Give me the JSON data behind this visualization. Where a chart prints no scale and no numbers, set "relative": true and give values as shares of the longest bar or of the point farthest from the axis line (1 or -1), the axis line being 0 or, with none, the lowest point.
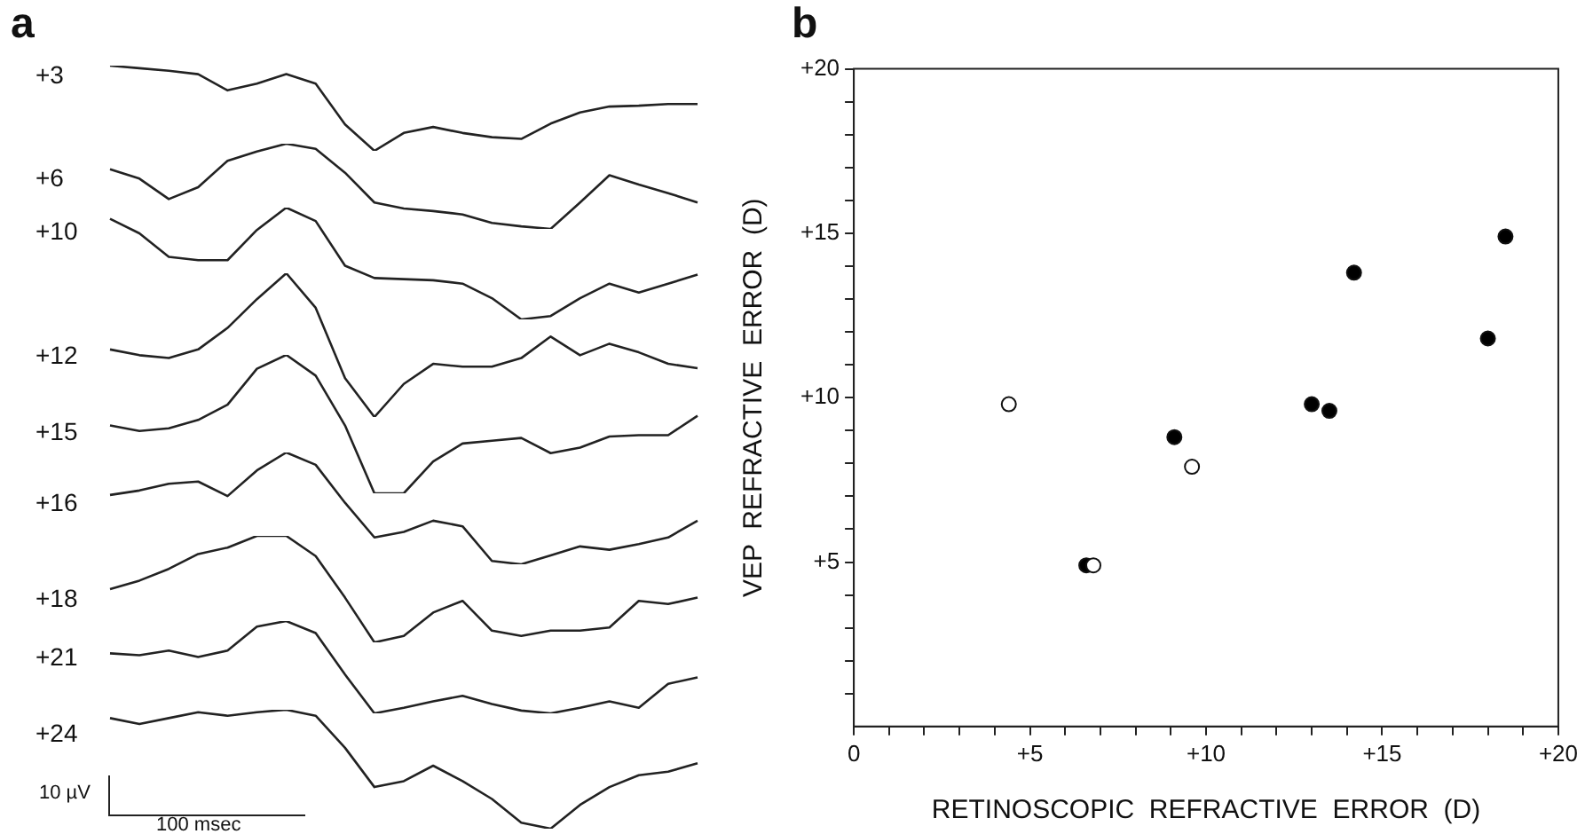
{
  "chart_data": [
    {
      "type": "line",
      "title": "a",
      "ylabel": "+3",
      "relative": true,
      "grid": false,
      "legend": false,
      "marker": "none",
      "color": "#222222",
      "categories": [
        null,
        null,
        null,
        null,
        null,
        null,
        null,
        null,
        null,
        null,
        null,
        null,
        null,
        null,
        null,
        null,
        null,
        null,
        null,
        null,
        null
      ],
      "values": [
        1,
        0.97,
        0.94,
        0.9,
        0.71,
        0.79,
        0.9,
        0.79,
        0.31,
        0,
        0.21,
        0.28,
        0.21,
        0.16,
        0.14,
        0.32,
        0.45,
        0.52,
        0.53,
        0.55,
        0.55
      ]
    },
    {
      "type": "line",
      "ylabel": "+6",
      "relative": true,
      "grid": false,
      "legend": false,
      "marker": "none",
      "color": "#222222",
      "categories": [
        null,
        null,
        null,
        null,
        null,
        null,
        null,
        null,
        null,
        null,
        null,
        null,
        null,
        null,
        null,
        null,
        null,
        null,
        null,
        null,
        null
      ],
      "values": [
        0.7,
        0.59,
        0.35,
        0.49,
        0.8,
        0.91,
        1,
        0.94,
        0.66,
        0.31,
        0.24,
        0.21,
        0.17,
        0.07,
        0.03,
        0,
        0.31,
        0.63,
        0.52,
        0.42,
        0.31
      ]
    },
    {
      "type": "line",
      "ylabel": "+10",
      "relative": true,
      "grid": false,
      "legend": false,
      "marker": "none",
      "color": "#222222",
      "categories": [
        null,
        null,
        null,
        null,
        null,
        null,
        null,
        null,
        null,
        null,
        null,
        null,
        null,
        null,
        null,
        null,
        null,
        null,
        null,
        null,
        null
      ],
      "values": [
        0.9,
        0.77,
        0.56,
        0.53,
        0.53,
        0.8,
        1,
        0.88,
        0.48,
        0.37,
        0.36,
        0.35,
        0.32,
        0.19,
        0,
        0.03,
        0.19,
        0.32,
        0.24,
        0.32,
        0.4
      ]
    },
    {
      "type": "line",
      "ylabel": "+12",
      "relative": true,
      "grid": false,
      "legend": false,
      "marker": "none",
      "color": "#222222",
      "categories": [
        null,
        null,
        null,
        null,
        null,
        null,
        null,
        null,
        null,
        null,
        null,
        null,
        null,
        null,
        null,
        null,
        null,
        null,
        null,
        null,
        null
      ],
      "values": [
        0.47,
        0.43,
        0.41,
        0.47,
        0.62,
        0.82,
        1,
        0.76,
        0.27,
        0,
        0.23,
        0.37,
        0.35,
        0.35,
        0.41,
        0.56,
        0.43,
        0.51,
        0.45,
        0.37,
        0.34
      ]
    },
    {
      "type": "line",
      "ylabel": "+15",
      "relative": true,
      "grid": false,
      "legend": false,
      "marker": "none",
      "color": "#222222",
      "categories": [
        null,
        null,
        null,
        null,
        null,
        null,
        null,
        null,
        null,
        null,
        null,
        null,
        null,
        null,
        null,
        null,
        null,
        null,
        null,
        null,
        null
      ],
      "values": [
        0.49,
        0.45,
        0.47,
        0.53,
        0.64,
        0.9,
        1,
        0.85,
        0.49,
        0,
        0,
        0.23,
        0.36,
        0.38,
        0.4,
        0.29,
        0.33,
        0.41,
        0.42,
        0.42,
        0.56
      ]
    },
    {
      "type": "line",
      "ylabel": "+16",
      "relative": true,
      "grid": false,
      "legend": false,
      "marker": "none",
      "color": "#222222",
      "categories": [
        null,
        null,
        null,
        null,
        null,
        null,
        null,
        null,
        null,
        null,
        null,
        null,
        null,
        null,
        null,
        null,
        null,
        null,
        null,
        null,
        null
      ],
      "values": [
        0.62,
        0.66,
        0.72,
        0.74,
        0.61,
        0.84,
        1,
        0.89,
        0.55,
        0.24,
        0.29,
        0.39,
        0.34,
        0.03,
        0,
        0.08,
        0.16,
        0.13,
        0.18,
        0.24,
        0.39
      ]
    },
    {
      "type": "line",
      "ylabel": "+18",
      "relative": true,
      "grid": false,
      "legend": false,
      "marker": "none",
      "color": "#222222",
      "categories": [
        null,
        null,
        null,
        null,
        null,
        null,
        null,
        null,
        null,
        null,
        null,
        null,
        null,
        null,
        null,
        null,
        null,
        null,
        null,
        null,
        null
      ],
      "values": [
        0.5,
        0.58,
        0.69,
        0.83,
        0.89,
        1,
        1,
        0.81,
        0.42,
        0,
        0.06,
        0.28,
        0.39,
        0.11,
        0.06,
        0.11,
        0.11,
        0.14,
        0.39,
        0.36,
        0.42
      ]
    },
    {
      "type": "line",
      "ylabel": "+21",
      "relative": true,
      "grid": false,
      "legend": false,
      "marker": "none",
      "color": "#222222",
      "categories": [
        null,
        null,
        null,
        null,
        null,
        null,
        null,
        null,
        null,
        null,
        null,
        null,
        null,
        null,
        null,
        null,
        null,
        null,
        null,
        null,
        null
      ],
      "values": [
        0.65,
        0.63,
        0.68,
        0.61,
        0.68,
        0.94,
        1,
        0.87,
        0.42,
        0,
        0.06,
        0.13,
        0.19,
        0.1,
        0.03,
        0,
        0.06,
        0.13,
        0.06,
        0.32,
        0.39
      ]
    },
    {
      "type": "line",
      "ylabel": "+24",
      "relative": true,
      "grid": false,
      "legend": false,
      "marker": "none",
      "color": "#222222",
      "annotations": [
        "10 µV",
        "100 msec"
      ],
      "categories": [
        null,
        null,
        null,
        null,
        null,
        null,
        null,
        null,
        null,
        null,
        null,
        null,
        null,
        null,
        null,
        null,
        null,
        null,
        null,
        null,
        null
      ],
      "values": [
        0.93,
        0.88,
        0.93,
        0.98,
        0.95,
        0.98,
        1,
        0.95,
        0.68,
        0.35,
        0.4,
        0.53,
        0.4,
        0.25,
        0.05,
        0,
        0.2,
        0.35,
        0.45,
        0.48,
        0.55
      ]
    },
    {
      "type": "scatter",
      "title": "b",
      "xlabel": "RETINOSCOPIC  REFRACTIVE  ERROR  (D)",
      "ylabel": "VEP  REFRACTIVE  ERROR  (D)",
      "grid": false,
      "legend": false,
      "marker": "circle",
      "xlim": [
        0,
        20
      ],
      "ylim": [
        0,
        20
      ],
      "xticks": [
        0,
        {
          "value": 1,
          "label": null
        },
        {
          "value": 2,
          "label": null
        },
        {
          "value": 3,
          "label": null
        },
        {
          "value": 4,
          "label": null
        },
        {
          "value": 5,
          "label": "+5"
        },
        {
          "value": 6,
          "label": null
        },
        {
          "value": 7,
          "label": null
        },
        {
          "value": 8,
          "label": null
        },
        {
          "value": 9,
          "label": null
        },
        {
          "value": 10,
          "label": "+10"
        },
        {
          "value": 11,
          "label": null
        },
        {
          "value": 12,
          "label": null
        },
        {
          "value": 13,
          "label": null
        },
        {
          "value": 14,
          "label": null
        },
        {
          "value": 15,
          "label": "+15"
        },
        {
          "value": 16,
          "label": null
        },
        {
          "value": 17,
          "label": null
        },
        {
          "value": 18,
          "label": null
        },
        {
          "value": 19,
          "label": null
        },
        {
          "value": 20,
          "label": "+20"
        }
      ],
      "yticks": [
        {
          "value": 1,
          "label": null
        },
        {
          "value": 2,
          "label": null
        },
        {
          "value": 3,
          "label": null
        },
        {
          "value": 4,
          "label": null
        },
        {
          "value": 5,
          "label": "+5"
        },
        {
          "value": 6,
          "label": null
        },
        {
          "value": 7,
          "label": null
        },
        {
          "value": 8,
          "label": null
        },
        {
          "value": 9,
          "label": null
        },
        {
          "value": 10,
          "label": "+10"
        },
        {
          "value": 11,
          "label": null
        },
        {
          "value": 12,
          "label": null
        },
        {
          "value": 13,
          "label": null
        },
        {
          "value": 14,
          "label": null
        },
        {
          "value": 15,
          "label": "+15"
        },
        {
          "value": 16,
          "label": null
        },
        {
          "value": 17,
          "label": null
        },
        {
          "value": 18,
          "label": null
        },
        {
          "value": 19,
          "label": null
        },
        {
          "value": 20,
          "label": "+20"
        }
      ],
      "series": [
        {
          "color": "#000000",
          "x": [
            6.6,
            9.1,
            13.0,
            13.5,
            14.2,
            18.0,
            18.5
          ],
          "values": [
            4.9,
            8.8,
            9.8,
            9.6,
            13.8,
            11.8,
            14.9
          ]
        },
        {
          "color": "#ffffff",
          "x": [
            4.4,
            6.8,
            9.6
          ],
          "values": [
            9.8,
            4.9,
            7.9
          ]
        }
      ]
    }
  ]
}
